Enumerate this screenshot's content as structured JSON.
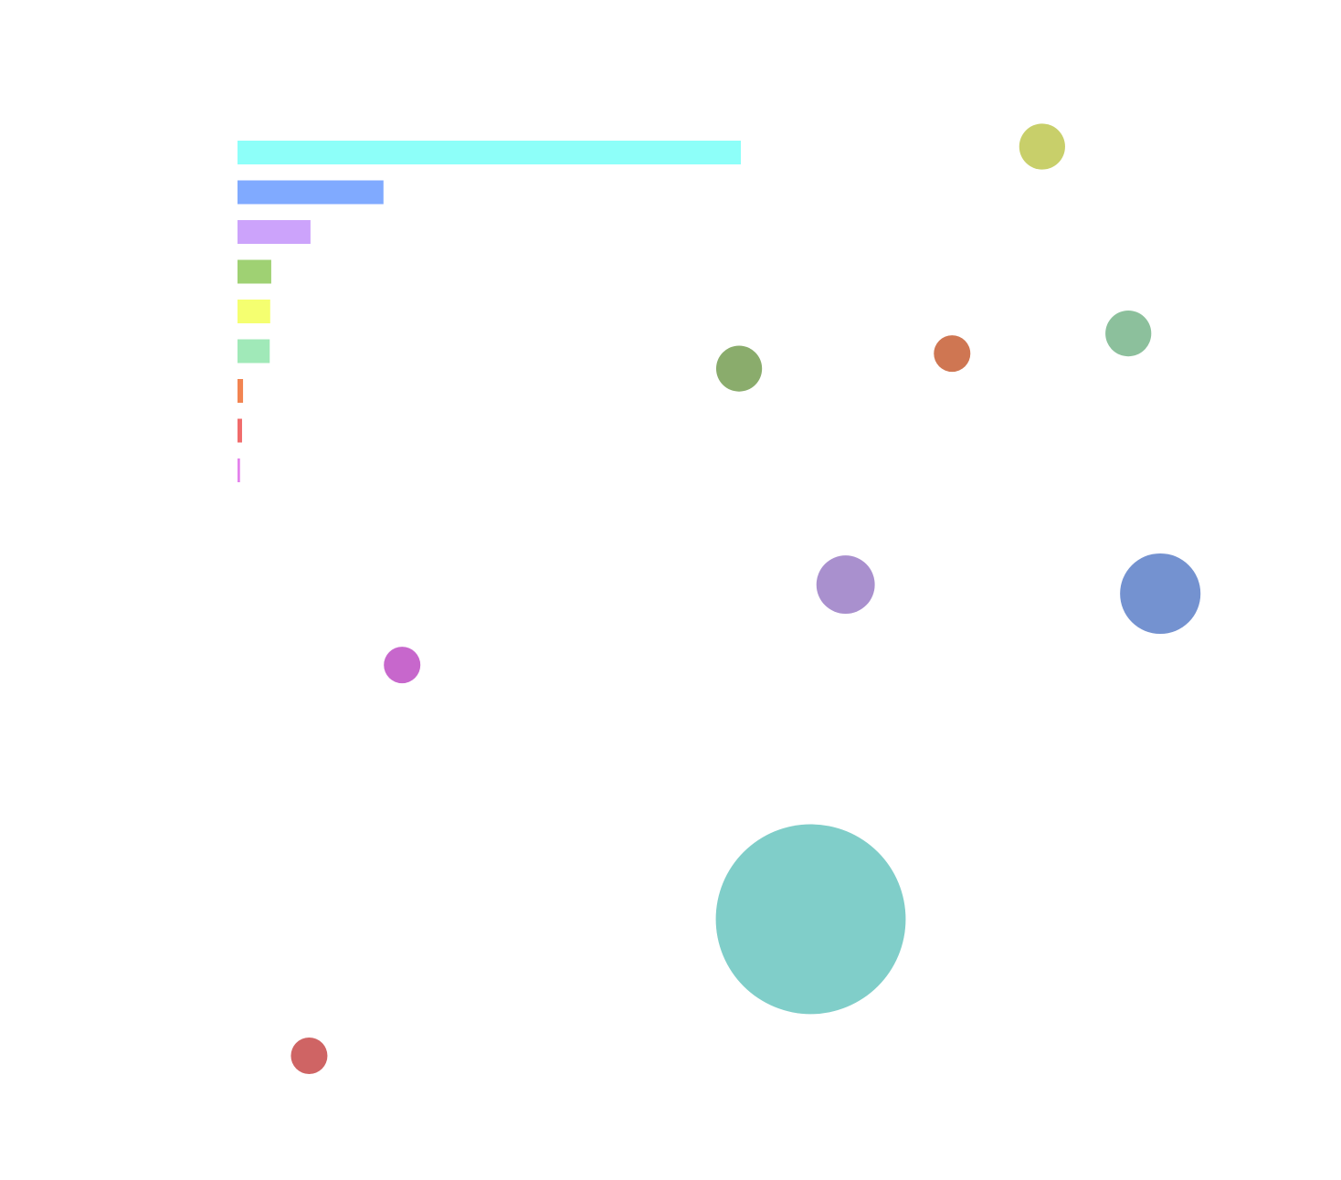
{
  "chart_data": [
    {
      "type": "bar",
      "categories": [
        null,
        null,
        null,
        null,
        null,
        null,
        null,
        null,
        null
      ],
      "values": [
        100,
        29,
        14.5,
        6.7,
        6.5,
        6.4,
        1.1,
        0.9,
        0.5
      ],
      "colors": [
        "#8dfff9",
        "#80aaff",
        "#cca3fb",
        "#9fd173",
        "#f5ff70",
        "#a0e9b8",
        "#f28451",
        "#f06b6b",
        "#e382ec"
      ],
      "xlim": [
        0,
        100
      ]
    },
    {
      "type": "bubble",
      "x": [
        83.1,
        92.0,
        73.8,
        51.8,
        62.8,
        95.3,
        17.0,
        59.2,
        7.4
      ],
      "y": [
        94.5,
        75.9,
        73.9,
        72.4,
        50.9,
        50,
        42.9,
        17.6,
        4.0
      ],
      "sizes": [
        6.3,
        6.3,
        4,
        6.3,
        10.2,
        19.4,
        4,
        108,
        4
      ],
      "colors": [
        "#c8cf6a",
        "#8cc09c",
        "#cf7652",
        "#8aac6c",
        "#a990ce",
        "#7492d0",
        "#c767cc",
        "#80cec9",
        "#cf6464"
      ],
      "xlim": [
        0,
        100
      ],
      "ylim": [
        0,
        100
      ]
    }
  ]
}
